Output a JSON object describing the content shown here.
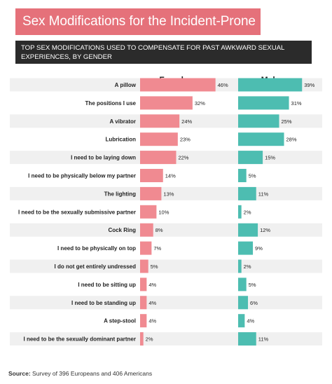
{
  "header": {
    "title": "Sex Modifications for the Incident-Prone",
    "subtitle": "TOP SEX MODIFICATIONS USED TO COMPENSATE FOR PAST AWKWARD SEXUAL EXPERIENCES, BY GENDER"
  },
  "footer": {
    "source_label": "Source:",
    "source_text": "Survey of 396 Europeans and 406 Americans"
  },
  "colors": {
    "female": "#f08a91",
    "male": "#4dbdb1",
    "title_bg": "#e5717a",
    "stripe": "#f0f0f0"
  },
  "chart_data": {
    "type": "bar",
    "orientation": "horizontal",
    "categories": [
      "A pillow",
      "The positions I use",
      "A vibrator",
      "Lubrication",
      "I need to be laying down",
      "I need to be physically below my partner",
      "The lighting",
      "I need to be the sexually submissive partner",
      "Cock Ring",
      "I need to be physically on top",
      "I do not get entirely undressed",
      "I need to be sitting up",
      "I need to be standing up",
      "A step-stool",
      "I need to be the sexually dominant partner"
    ],
    "series": [
      {
        "name": "Female",
        "values": [
          46,
          32,
          24,
          23,
          22,
          14,
          13,
          10,
          8,
          7,
          5,
          4,
          4,
          4,
          2
        ]
      },
      {
        "name": "Male",
        "values": [
          39,
          31,
          25,
          28,
          15,
          5,
          11,
          2,
          12,
          9,
          2,
          5,
          6,
          4,
          11
        ]
      }
    ],
    "value_suffix": "%",
    "grid": false
  }
}
